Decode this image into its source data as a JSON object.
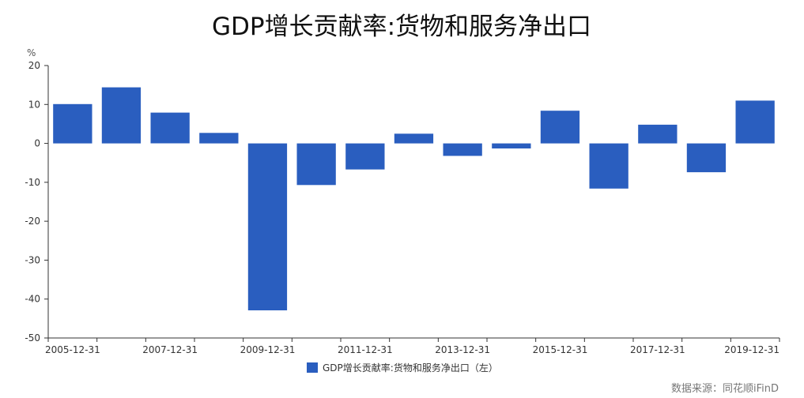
{
  "chart_data": {
    "type": "bar",
    "title": "GDP增长贡献率:货物和服务净出口",
    "y_unit": "%",
    "ylim": [
      -50,
      20
    ],
    "y_ticks": [
      20,
      10,
      0,
      -10,
      -20,
      -30,
      -40,
      -50
    ],
    "x_tick_labels": [
      "2005-12-31",
      "2007-12-31",
      "2009-12-31",
      "2011-12-31",
      "2013-12-31",
      "2015-12-31",
      "2017-12-31",
      "2019-12-31"
    ],
    "categories": [
      "2005-12-31",
      "2006-12-31",
      "2007-12-31",
      "2008-12-31",
      "2009-12-31",
      "2010-12-31",
      "2011-12-31",
      "2012-12-31",
      "2013-12-31",
      "2014-12-31",
      "2015-12-31",
      "2016-12-31",
      "2017-12-31",
      "2018-12-31",
      "2019-12-31"
    ],
    "series": [
      {
        "name": "GDP增长贡献率:货物和服务净出口（左）",
        "color": "#2a5ebf",
        "values": [
          10.1,
          14.4,
          7.9,
          2.7,
          -42.9,
          -10.7,
          -6.7,
          2.5,
          -3.2,
          -1.3,
          8.4,
          -11.6,
          4.8,
          -7.4,
          11.0
        ]
      }
    ],
    "legend_position": "bottom",
    "grid": false,
    "source": "数据来源：同花顺iFinD"
  }
}
